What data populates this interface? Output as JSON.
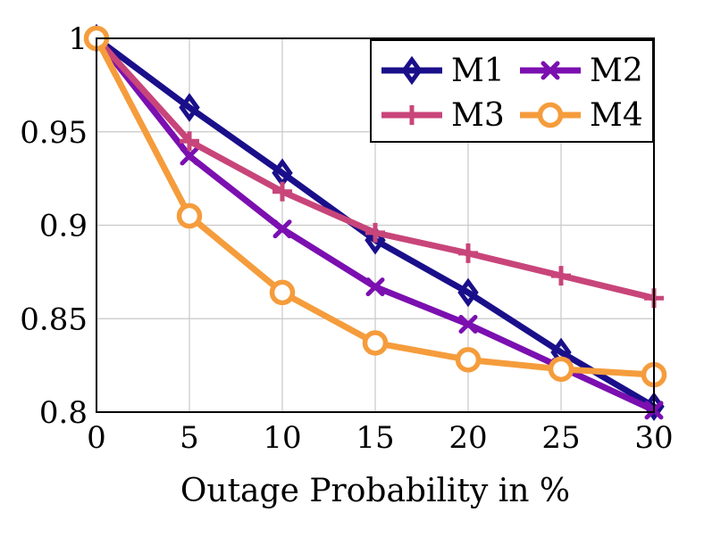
{
  "chart_data": {
    "type": "line",
    "title": "",
    "xlabel": "Outage Probability in %",
    "ylabel": "",
    "x": [
      0,
      5,
      10,
      15,
      20,
      25,
      30
    ],
    "xlim": [
      0,
      30
    ],
    "ylim": [
      0.8,
      1.0
    ],
    "xticks": [
      "0",
      "5",
      "10",
      "15",
      "20",
      "25",
      "30"
    ],
    "yticks": [
      "0.8",
      "0.85",
      "0.9",
      "0.95",
      "1"
    ],
    "grid": true,
    "legend_position": "top-right",
    "series": [
      {
        "name": "M1",
        "color": "#1a0f8a",
        "marker": "diamond",
        "values": [
          1.0,
          0.963,
          0.928,
          0.892,
          0.864,
          0.832,
          0.803
        ]
      },
      {
        "name": "M2",
        "color": "#7b0fb0",
        "marker": "x",
        "values": [
          1.0,
          0.937,
          0.898,
          0.867,
          0.847,
          0.824,
          0.801
        ]
      },
      {
        "name": "M3",
        "color": "#c8457a",
        "marker": "plus",
        "values": [
          1.0,
          0.945,
          0.918,
          0.896,
          0.885,
          0.873,
          0.861
        ]
      },
      {
        "name": "M4",
        "color": "#f59c3c",
        "marker": "circle",
        "values": [
          1.0,
          0.905,
          0.864,
          0.837,
          0.828,
          0.823,
          0.82
        ]
      }
    ]
  }
}
